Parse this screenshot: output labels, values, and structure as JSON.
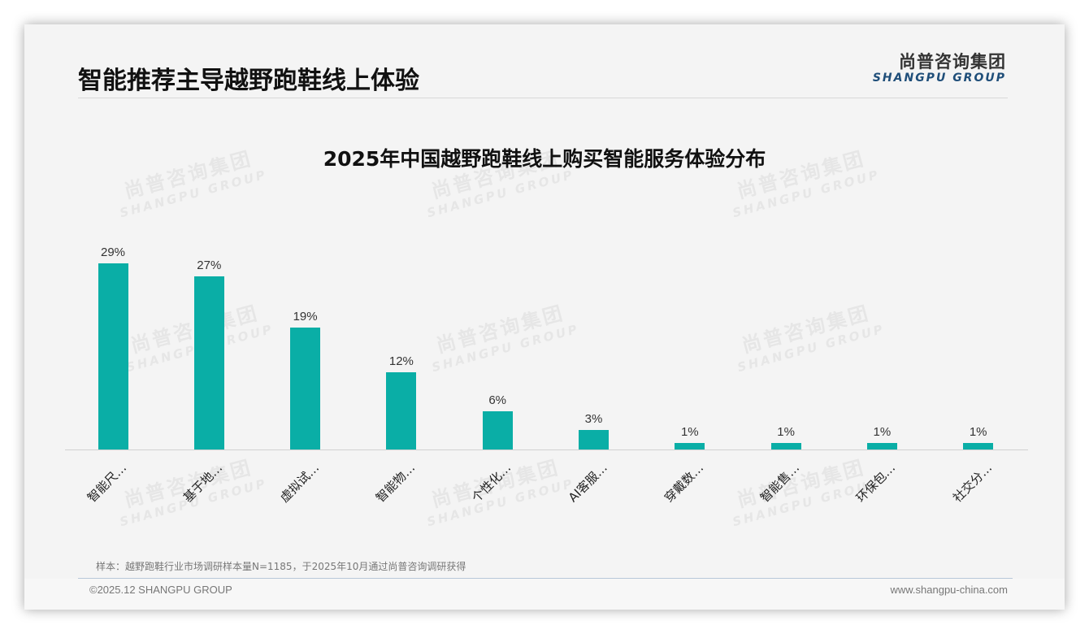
{
  "header": {
    "title": "智能推荐主导越野跑鞋线上体验",
    "logo_cn": "尚普咨询集团",
    "logo_en": "SHANGPU GROUP"
  },
  "watermark": {
    "cn": "尚普咨询集团",
    "en": "SHANGPU GROUP"
  },
  "colors": {
    "bar": "#0aaea6",
    "logo_en": "#1f4e79",
    "background": "#f4f4f4"
  },
  "chart_data": {
    "type": "bar",
    "title": "2025年中国越野跑鞋线上购买智能服务体验分布",
    "xlabel": "",
    "ylabel": "",
    "ylim": [
      0,
      30
    ],
    "grid": false,
    "legend": "none",
    "categories": [
      "智能尺…",
      "基于地…",
      "虚拟试…",
      "智能物…",
      "个性化…",
      "AI客服…",
      "穿戴数…",
      "智能售…",
      "环保包…",
      "社交分…"
    ],
    "values": [
      29,
      27,
      19,
      12,
      6,
      3,
      1,
      1,
      1,
      1
    ],
    "value_labels": [
      "29%",
      "27%",
      "19%",
      "12%",
      "6%",
      "3%",
      "1%",
      "1%",
      "1%",
      "1%"
    ],
    "unit": "%"
  },
  "footer": {
    "sample_note": "样本：越野跑鞋行业市场调研样本量N=1185，于2025年10月通过尚普咨询调研获得",
    "copyright": "©2025.12 SHANGPU GROUP",
    "website": "www.shangpu-china.com"
  }
}
